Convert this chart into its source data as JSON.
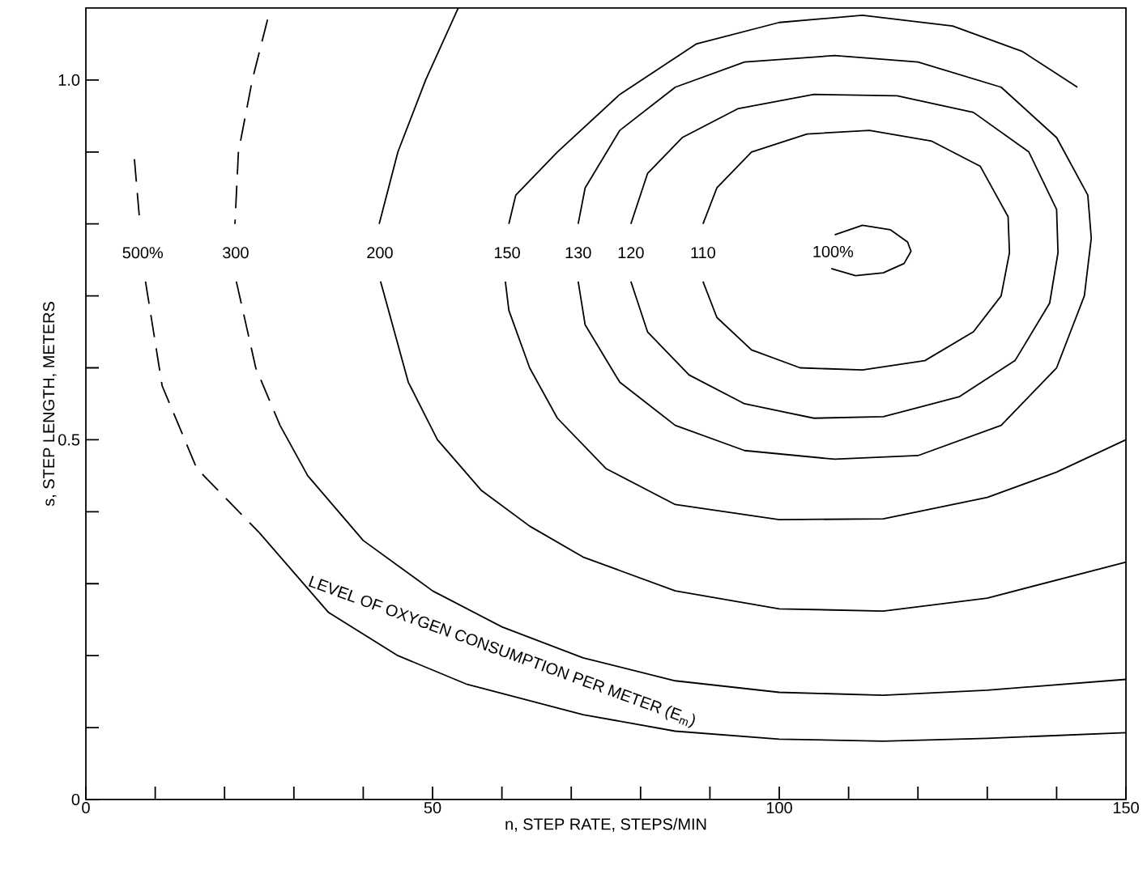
{
  "chart_data": {
    "type": "line",
    "xlabel": "n, STEP RATE, STEPS/MIN",
    "ylabel": "s, STEP LENGTH, METERS",
    "xlim": [
      0,
      150
    ],
    "ylim": [
      0,
      1.1
    ],
    "xticks": [
      0,
      {
        "value": 10,
        "label": null
      },
      {
        "value": 20,
        "label": null
      },
      {
        "value": 30,
        "label": null
      },
      {
        "value": 40,
        "label": null
      },
      50,
      {
        "value": 60,
        "label": null
      },
      {
        "value": 70,
        "label": null
      },
      {
        "value": 80,
        "label": null
      },
      {
        "value": 90,
        "label": null
      },
      100,
      {
        "value": 110,
        "label": null
      },
      {
        "value": 120,
        "label": null
      },
      {
        "value": 130,
        "label": null
      },
      {
        "value": 140,
        "label": null
      },
      150
    ],
    "yticks": [
      0,
      {
        "value": 0.1,
        "label": null
      },
      {
        "value": 0.2,
        "label": null
      },
      {
        "value": 0.3,
        "label": null
      },
      {
        "value": 0.4,
        "label": null
      },
      0.5,
      {
        "value": 0.6,
        "label": null
      },
      {
        "value": 0.7,
        "label": null
      },
      {
        "value": 0.8,
        "label": null
      },
      {
        "value": 0.9,
        "label": null
      },
      {
        "value": 1.0,
        "label": "1.0"
      }
    ],
    "line_style": "solid",
    "series": [
      {
        "name": "500%",
        "color": "#000000",
        "line_style": "dashed",
        "x": [
          7.0,
          7.8,
          null,
          8.6,
          11,
          16,
          25
        ],
        "values": [
          0.89,
          0.8,
          null,
          0.72,
          0.575,
          0.46,
          0.371
        ]
      },
      {
        "color": "#000000",
        "x": [
          25,
          35,
          45,
          55,
          71.7,
          85,
          100,
          115,
          130,
          150
        ],
        "values": [
          0.371,
          0.26,
          0.2,
          0.16,
          0.118,
          0.095,
          0.084,
          0.081,
          0.085,
          0.093
        ]
      },
      {
        "name": "300",
        "color": "#000000",
        "line_style": "dashed",
        "x": [
          26.2,
          24,
          22,
          21.5,
          null,
          21.7,
          24.5,
          28
        ],
        "values": [
          1.084,
          1.0,
          0.9,
          0.8,
          null,
          0.72,
          0.6,
          0.52
        ]
      },
      {
        "color": "#000000",
        "x": [
          28,
          32,
          40,
          50,
          60,
          71.7,
          85,
          100,
          115,
          130,
          150
        ],
        "values": [
          0.52,
          0.45,
          0.36,
          0.29,
          0.24,
          0.197,
          0.165,
          0.149,
          0.145,
          0.152,
          0.167
        ]
      },
      {
        "name": "200",
        "color": "#000000",
        "x": [
          53.7,
          49,
          45,
          42.3,
          null,
          42.5,
          46.5,
          50.7,
          57,
          64,
          71.7,
          85,
          100,
          115,
          130,
          150
        ],
        "values": [
          1.1,
          1.0,
          0.9,
          0.8,
          null,
          0.72,
          0.58,
          0.5,
          0.43,
          0.38,
          0.337,
          0.29,
          0.265,
          0.262,
          0.28,
          0.33
        ]
      },
      {
        "name": "150",
        "color": "#000000",
        "x": [
          143,
          135,
          125,
          112,
          100,
          88,
          77,
          68,
          62,
          61,
          null,
          60.5,
          61,
          64,
          68,
          75,
          85,
          100,
          115,
          130,
          140,
          150
        ],
        "values": [
          0.99,
          1.04,
          1.075,
          1.09,
          1.08,
          1.05,
          0.98,
          0.9,
          0.84,
          0.8,
          null,
          0.72,
          0.68,
          0.6,
          0.53,
          0.46,
          0.41,
          0.389,
          0.39,
          0.42,
          0.455,
          0.5
        ]
      },
      {
        "name": "130",
        "color": "#000000",
        "x": [
          71,
          72,
          77,
          85,
          95,
          108,
          120,
          132,
          140,
          144.5,
          145,
          144,
          140,
          132,
          120,
          108,
          95,
          85,
          77,
          72,
          71
        ],
        "values": [
          0.8,
          0.85,
          0.93,
          0.99,
          1.025,
          1.034,
          1.025,
          0.99,
          0.92,
          0.84,
          0.78,
          0.7,
          0.6,
          0.52,
          0.478,
          0.473,
          0.485,
          0.52,
          0.58,
          0.66,
          0.72
        ]
      },
      {
        "name": "120",
        "color": "#000000",
        "x": [
          78.6,
          81,
          86,
          94,
          105,
          117,
          128,
          136,
          140,
          140.2,
          139,
          134,
          126,
          115,
          105,
          95,
          87,
          81,
          78.6
        ],
        "values": [
          0.8,
          0.87,
          0.92,
          0.96,
          0.98,
          0.978,
          0.955,
          0.9,
          0.82,
          0.76,
          0.69,
          0.61,
          0.56,
          0.532,
          0.53,
          0.55,
          0.59,
          0.65,
          0.72
        ]
      },
      {
        "name": "110",
        "color": "#000000",
        "x": [
          89,
          91,
          96,
          104,
          113,
          122,
          129,
          133,
          133.2,
          132,
          128,
          121,
          112,
          103,
          96,
          91,
          89
        ],
        "values": [
          0.8,
          0.85,
          0.9,
          0.925,
          0.93,
          0.915,
          0.88,
          0.81,
          0.76,
          0.7,
          0.65,
          0.61,
          0.597,
          0.6,
          0.625,
          0.67,
          0.72
        ]
      },
      {
        "name": "100%",
        "color": "#000000",
        "x": [
          108,
          112,
          116,
          118.5,
          119,
          118,
          115,
          111,
          107.5
        ],
        "values": [
          0.785,
          0.798,
          0.792,
          0.775,
          0.762,
          0.745,
          0.732,
          0.728,
          0.738
        ]
      }
    ],
    "annotations": [
      "LEVEL OF OXYGEN CONSUMPTION PER METER (E$_{m}$)"
    ]
  }
}
